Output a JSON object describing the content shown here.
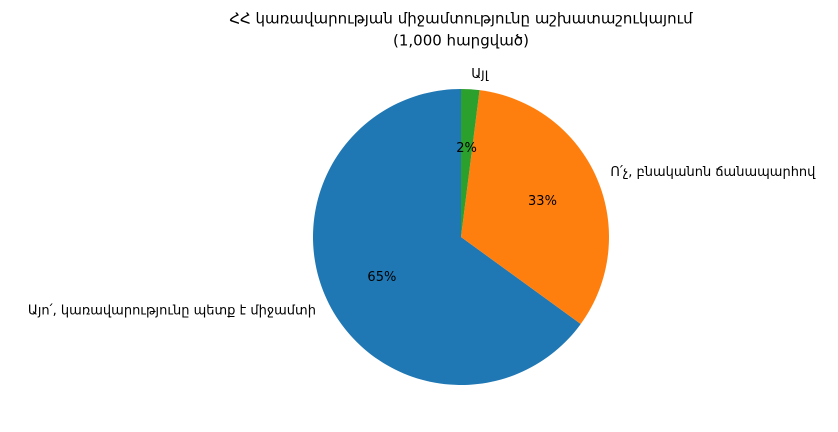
{
  "chart_data": {
    "type": "pie",
    "title": "ՀՀ կառավարության միջամտությունը աշխատաշուկայում",
    "subtitle": "(1,000 հարցված)",
    "categories": [
      "Այո՛, կառավարությունը պետք է միջամտի",
      "Ո՛չ, բնականոն ճանապարհով",
      "Այլ"
    ],
    "values": [
      65,
      33,
      2
    ],
    "value_labels": [
      "65%",
      "33%",
      "2%"
    ],
    "colors": [
      "#1f77b4",
      "#ff7f0e",
      "#2ca02c"
    ]
  }
}
